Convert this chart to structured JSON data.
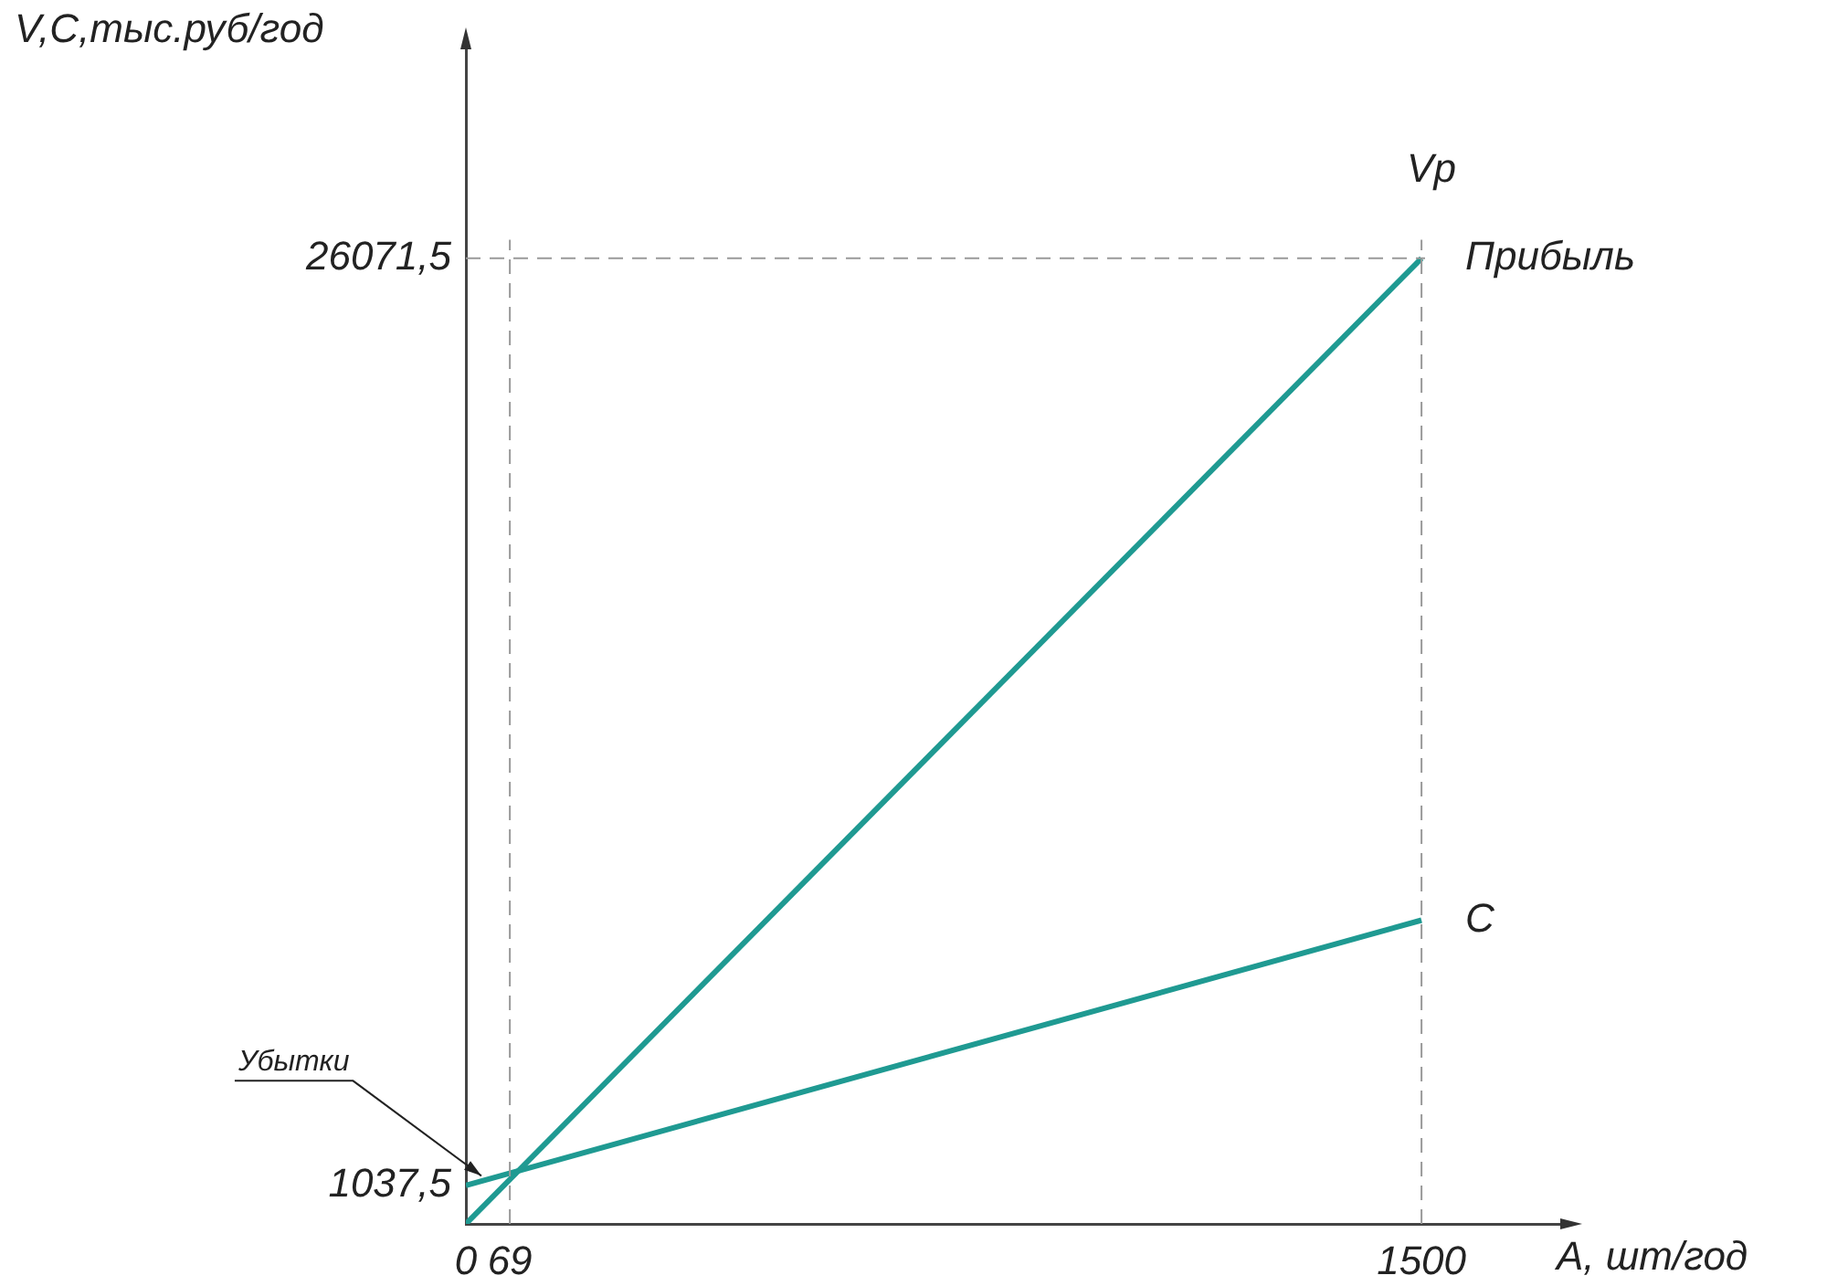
{
  "chart_data": {
    "type": "line",
    "xlabel": "А, шт/год",
    "ylabel": "V,C,тыс.руб/год",
    "x": [
      0,
      1500
    ],
    "series": [
      {
        "name": "Vp",
        "color": "#1f9a92",
        "values": [
          0,
          26071.5
        ]
      },
      {
        "name": "C",
        "color": "#1f9a92",
        "values": [
          1037.5,
          8200
        ]
      }
    ],
    "xlim": [
      0,
      1735
    ],
    "xticks": [
      0,
      69,
      1500
    ],
    "ylim": [
      0,
      32000
    ],
    "yticks": [
      {
        "value": 1037.5,
        "label": "1037,5"
      },
      {
        "value": 26071.5,
        "label": "26071,5"
      }
    ],
    "ref_lines": [
      {
        "axis": "x",
        "value": 69,
        "color": "#999999",
        "line_style": "dashed"
      },
      {
        "axis": "x",
        "value": 1500,
        "color": "#999999",
        "line_style": "dashed"
      },
      {
        "axis": "y",
        "value": 26071.5,
        "color": "#999999",
        "line_style": "dashed"
      }
    ],
    "annotations": [
      {
        "text": "Прибыль",
        "x": 1500,
        "y": 26071.5
      },
      {
        "text": "Убытки",
        "x": 30,
        "y": 1150
      }
    ],
    "grid": false,
    "legend": false,
    "marker": "none",
    "line_style": "solid"
  }
}
